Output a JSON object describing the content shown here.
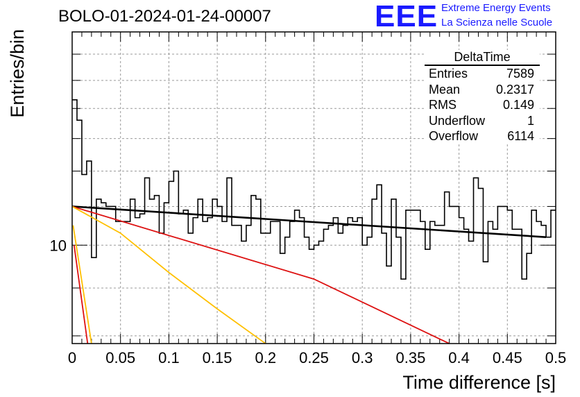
{
  "header": {
    "title": "BOLO-01-2024-01-24-00007",
    "logo_text": "EEE",
    "logo_line1": "Extreme Energy Events",
    "logo_line2": "La Scienza nelle Scuole"
  },
  "stats": {
    "title": "DeltaTime",
    "rows": [
      {
        "label": "Entries",
        "value": "7589"
      },
      {
        "label": "Mean",
        "value": "0.2317"
      },
      {
        "label": "RMS",
        "value": "0.149"
      },
      {
        "label": "Underflow",
        "value": "1"
      },
      {
        "label": "Overflow",
        "value": "6114"
      }
    ]
  },
  "chart_data": {
    "type": "line",
    "title": "BOLO-01-2024-01-24-00007",
    "xlabel": "Time difference [s]",
    "ylabel": "Entries/bin",
    "xlim": [
      0,
      0.5
    ],
    "ylim": [
      7.85,
      16.9
    ],
    "yscale": "log",
    "grid": true,
    "x_ticks": [
      "0",
      "0.05",
      "0.1",
      "0.15",
      "0.2",
      "0.25",
      "0.3",
      "0.35",
      "0.4",
      "0.45",
      "0.5"
    ],
    "y_tick_labels": [
      {
        "value": 10,
        "label": "10"
      }
    ],
    "histogram": {
      "bin_width": 0.005,
      "color": "#000000",
      "values": [
        14.3,
        13.6,
        11.9,
        12.3,
        9.7,
        11.2,
        11.1,
        11.0,
        11.0,
        10.6,
        10.6,
        10.6,
        11.2,
        10.7,
        10.8,
        11.8,
        11.2,
        11.3,
        10.3,
        11.1,
        11.7,
        12.0,
        10.8,
        10.9,
        10.3,
        10.7,
        11.2,
        10.6,
        10.7,
        11.2,
        11.0,
        10.6,
        11.8,
        10.5,
        10.5,
        10.1,
        10.5,
        11.3,
        11.2,
        10.3,
        10.3,
        10.6,
        10.6,
        9.8,
        10.2,
        10.6,
        10.9,
        10.7,
        10.2,
        9.9,
        10.0,
        10.1,
        10.4,
        10.5,
        10.7,
        10.3,
        10.5,
        10.7,
        10.6,
        10.7,
        10.0,
        10.2,
        11.2,
        11.6,
        10.3,
        9.5,
        11.2,
        10.2,
        9.2,
        10.9,
        10.9,
        10.9,
        10.6,
        9.9,
        10.6,
        10.5,
        10.5,
        11.4,
        11.0,
        11.0,
        10.7,
        10.4,
        10.1,
        11.8,
        11.5,
        9.6,
        10.6,
        10.4,
        11.0,
        11.0,
        10.9,
        10.4,
        10.4,
        9.2,
        9.8,
        10.9,
        10.6,
        10.5,
        10.2,
        10.9
      ],
      "underflow": 1,
      "overflow": 6114
    },
    "series": [
      {
        "name": "",
        "color": "#000000",
        "x": [
          0,
          0.49
        ],
        "y": [
          11.0,
          10.2
        ]
      },
      {
        "name": "",
        "color": "#dd1111",
        "x": [
          0,
          0.25,
          0.39
        ],
        "y": [
          11.0,
          9.2,
          7.85
        ]
      },
      {
        "name": "",
        "color": "#ffc000",
        "x": [
          0,
          0.05,
          0.1,
          0.15,
          0.2
        ],
        "y": [
          11.0,
          10.3,
          9.35,
          8.55,
          7.85
        ]
      },
      {
        "name": "",
        "color": "#ffc000",
        "x": [
          0.001,
          0.02
        ],
        "y": [
          10.5,
          7.85
        ]
      },
      {
        "name": "",
        "color": "#dd1111",
        "x": [
          0.002,
          0.016
        ],
        "y": [
          10.0,
          7.85
        ]
      }
    ]
  }
}
